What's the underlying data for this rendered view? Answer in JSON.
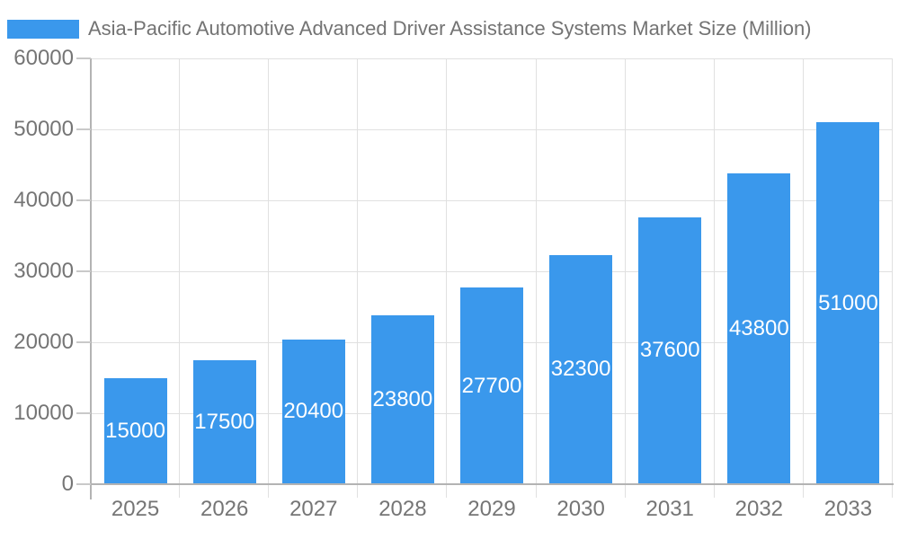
{
  "chart_data": {
    "type": "bar",
    "title": "",
    "xlabel": "",
    "ylabel": "",
    "legend": "Asia-Pacific Automotive Advanced Driver Assistance Systems Market Size (Million)",
    "legend_position": "top-left",
    "categories": [
      "2025",
      "2026",
      "2027",
      "2028",
      "2029",
      "2030",
      "2031",
      "2032",
      "2033"
    ],
    "values": [
      15000,
      17500,
      20400,
      23800,
      27700,
      32300,
      37600,
      43800,
      51000
    ],
    "value_labels": [
      "15000",
      "17500",
      "20400",
      "23800",
      "27700",
      "32300",
      "37600",
      "43800",
      "51000"
    ],
    "ylim": [
      0,
      60000
    ],
    "y_ticks": [
      0,
      10000,
      20000,
      30000,
      40000,
      50000,
      60000
    ],
    "grid": true,
    "value_label_position": "inside-center",
    "colors": {
      "bar": "#3A98EC",
      "value_label_text": "#ffffff",
      "axis_line": "#b3b3b3",
      "gridline": "#e0e0e0",
      "y_tick": "#c9c9c9",
      "axis_text": "#757575",
      "legend_text": "#737373"
    }
  }
}
